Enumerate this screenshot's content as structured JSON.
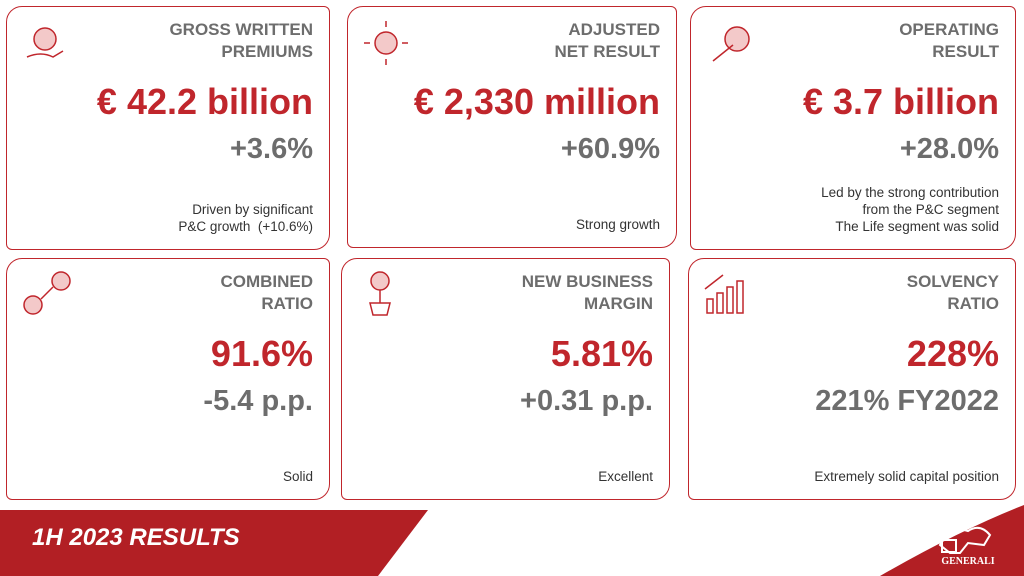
{
  "cards": [
    {
      "title": [
        "GROSS WRITTEN",
        "PREMIUMS"
      ],
      "value": "€ 42.2 billion",
      "change": "+3.6%",
      "note": [
        "Driven by significant",
        "P&C growth  (+10.6%)"
      ]
    },
    {
      "title": [
        "ADJUSTED",
        "NET RESULT"
      ],
      "value": "€ 2,330 million",
      "change": "+60.9%",
      "note": [
        "Strong growth"
      ]
    },
    {
      "title": [
        "OPERATING",
        "RESULT"
      ],
      "value": "€ 3.7 billion",
      "change": "+28.0%",
      "note": [
        "Led by the strong contribution",
        "from the P&C segment",
        "The Life segment was solid"
      ]
    },
    {
      "title": [
        "COMBINED",
        "RATIO"
      ],
      "value": "91.6%",
      "change": "-5.4 p.p.",
      "note": [
        "Solid"
      ]
    },
    {
      "title": [
        "NEW BUSINESS",
        "MARGIN"
      ],
      "value": "5.81%",
      "change": "+0.31 p.p.",
      "note": [
        "Excellent"
      ]
    },
    {
      "title": [
        "SOLVENCY",
        "RATIO"
      ],
      "value": "228%",
      "change": "221% FY2022",
      "note": [
        "Extremely solid capital position"
      ]
    }
  ],
  "footer": {
    "title": "1H 2023 RESULTS",
    "logo": "GENERALI"
  }
}
